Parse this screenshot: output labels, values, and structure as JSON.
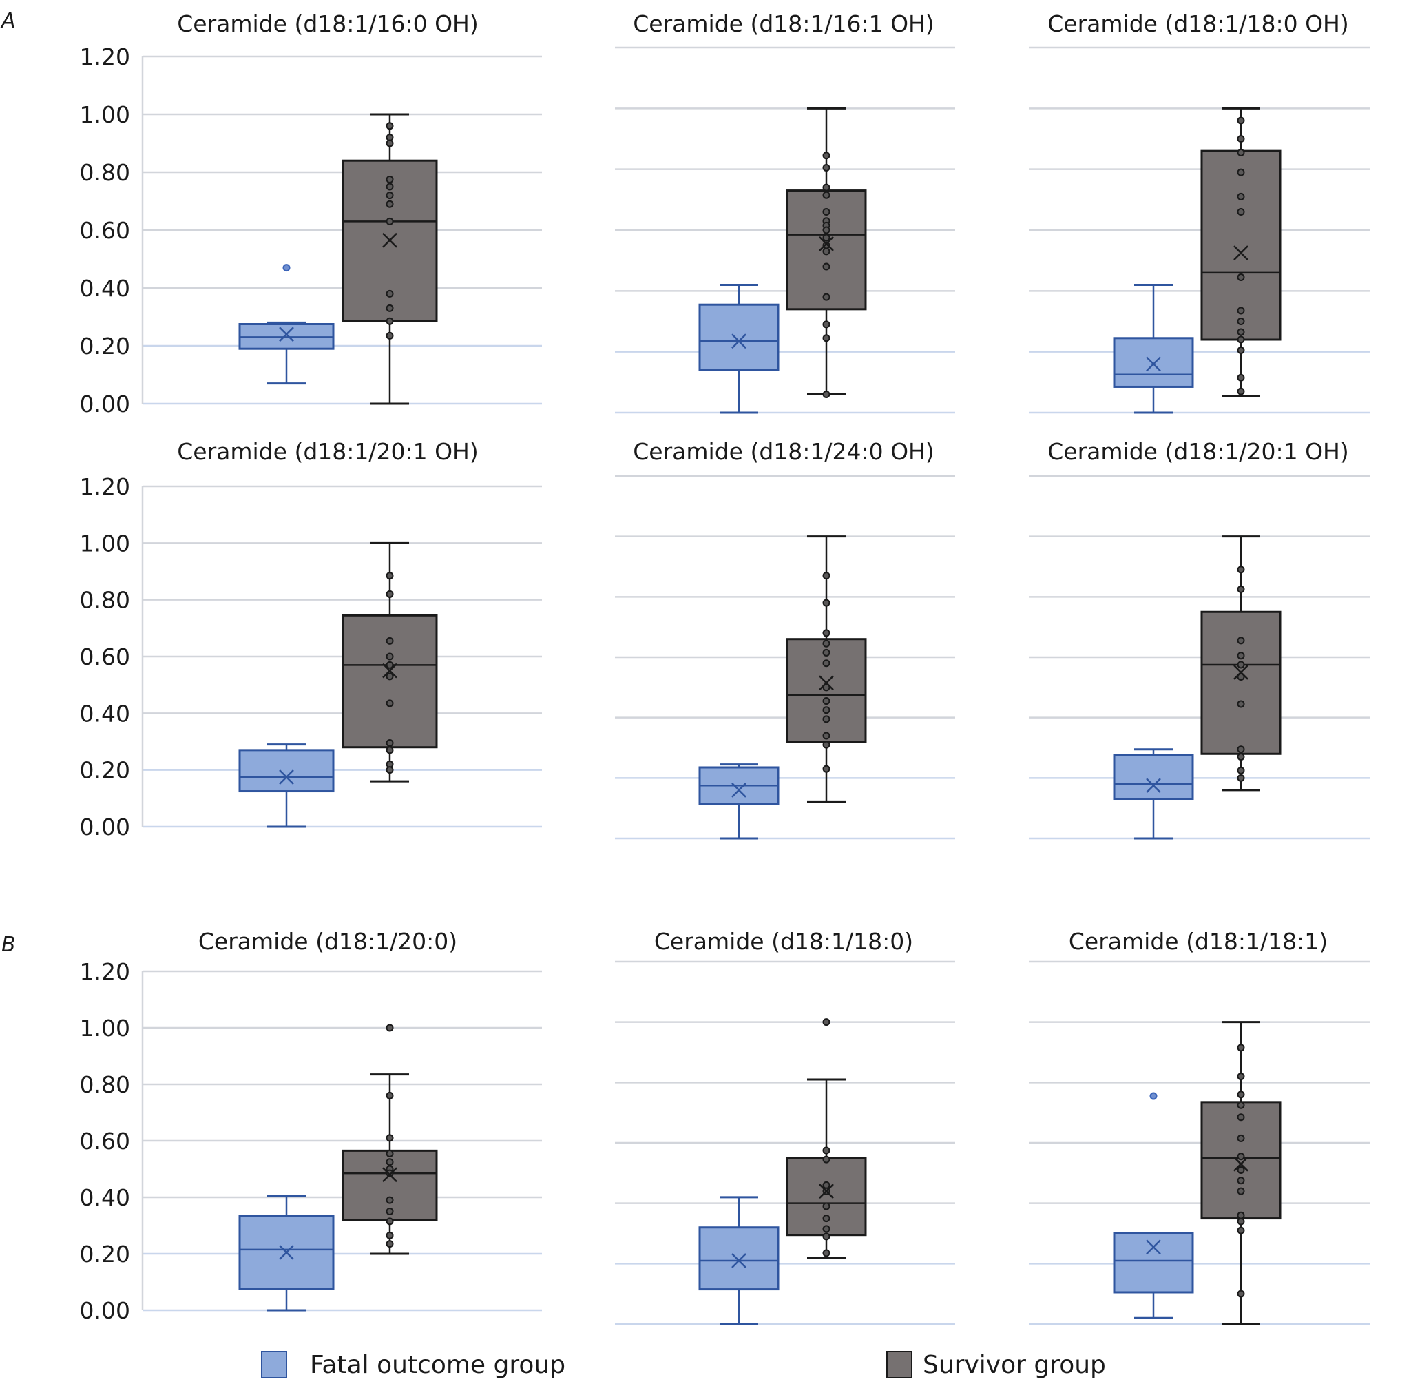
{
  "figure": {
    "panel_letters": [
      "A",
      "B"
    ],
    "legend": [
      {
        "label": "Fatal outcome group",
        "fill": "#8eaadb",
        "stroke": "#2f559f"
      },
      {
        "label": "Survivor group",
        "fill": "#767171",
        "stroke": "#1a1a1a"
      }
    ]
  },
  "chart_data": [
    {
      "type": "box",
      "section": "A",
      "title": "Ceramide (d18:1/16:0 OH)",
      "xlabel": "",
      "ylabel": "",
      "ylim": [
        0,
        1.2
      ],
      "yticks": [
        "0.00",
        "0.20",
        "0.40",
        "0.60",
        "0.80",
        "1.00",
        "1.20"
      ],
      "show_yticks": true,
      "grid": true,
      "series": [
        {
          "name": "Fatal outcome group",
          "min": 0.07,
          "q1": 0.19,
          "median": 0.23,
          "q3": 0.275,
          "max": 0.28,
          "mean": 0.24,
          "outliers": [
            0.47
          ],
          "points": []
        },
        {
          "name": "Survivor group",
          "min": 0.0,
          "q1": 0.285,
          "median": 0.63,
          "q3": 0.84,
          "max": 1.0,
          "mean": 0.565,
          "outliers": [],
          "points": [
            0.96,
            0.92,
            0.9,
            0.775,
            0.75,
            0.72,
            0.69,
            0.63,
            0.38,
            0.33,
            0.285,
            0.235
          ]
        }
      ]
    },
    {
      "type": "box",
      "section": "A",
      "title": "Ceramide (d18:1/16:1 OH)",
      "xlabel": "",
      "ylabel": "",
      "ylim": [
        0,
        1.2
      ],
      "yticks": [
        "0.00",
        "0.20",
        "0.40",
        "0.60",
        "0.80",
        "1.00",
        "1.20"
      ],
      "show_yticks": false,
      "grid": true,
      "series": [
        {
          "name": "Fatal outcome group",
          "min": 0.0,
          "q1": 0.14,
          "median": 0.235,
          "q3": 0.355,
          "max": 0.42,
          "mean": 0.235,
          "outliers": [],
          "points": []
        },
        {
          "name": "Survivor group",
          "min": 0.06,
          "q1": 0.34,
          "median": 0.585,
          "q3": 0.73,
          "max": 1.0,
          "mean": 0.555,
          "outliers": [],
          "points": [
            0.845,
            0.805,
            0.74,
            0.715,
            0.66,
            0.63,
            0.615,
            0.6,
            0.575,
            0.55,
            0.53,
            0.48,
            0.38,
            0.29,
            0.245,
            0.06
          ]
        }
      ]
    },
    {
      "type": "box",
      "section": "A",
      "title": "Ceramide (d18:1/18:0 OH)",
      "xlabel": "",
      "ylabel": "",
      "ylim": [
        0,
        1.2
      ],
      "yticks": [
        "0.00",
        "0.20",
        "0.40",
        "0.60",
        "0.80",
        "1.00",
        "1.20"
      ],
      "show_yticks": false,
      "grid": true,
      "series": [
        {
          "name": "Fatal outcome group",
          "min": 0.0,
          "q1": 0.085,
          "median": 0.125,
          "q3": 0.245,
          "max": 0.42,
          "mean": 0.16,
          "outliers": [],
          "points": []
        },
        {
          "name": "Survivor group",
          "min": 0.055,
          "q1": 0.24,
          "median": 0.46,
          "q3": 0.86,
          "max": 1.0,
          "mean": 0.525,
          "outliers": [],
          "points": [
            0.96,
            0.9,
            0.855,
            0.79,
            0.71,
            0.66,
            0.445,
            0.335,
            0.3,
            0.265,
            0.24,
            0.205,
            0.115,
            0.07
          ]
        }
      ]
    },
    {
      "type": "box",
      "section": "A",
      "title": "Ceramide (d18:1/20:1 OH)",
      "xlabel": "",
      "ylabel": "",
      "ylim": [
        0,
        1.2
      ],
      "yticks": [
        "0.00",
        "0.20",
        "0.40",
        "0.60",
        "0.80",
        "1.00",
        "1.20"
      ],
      "show_yticks": true,
      "grid": true,
      "series": [
        {
          "name": "Fatal outcome group",
          "min": 0.0,
          "q1": 0.125,
          "median": 0.175,
          "q3": 0.27,
          "max": 0.29,
          "mean": 0.175,
          "outliers": [],
          "points": []
        },
        {
          "name": "Survivor group",
          "min": 0.16,
          "q1": 0.28,
          "median": 0.57,
          "q3": 0.745,
          "max": 1.0,
          "mean": 0.55,
          "outliers": [],
          "points": [
            0.885,
            0.82,
            0.655,
            0.6,
            0.57,
            0.53,
            0.435,
            0.295,
            0.27,
            0.22,
            0.2
          ]
        }
      ]
    },
    {
      "type": "box",
      "section": "A",
      "title": "Ceramide (d18:1/24:0 OH)",
      "xlabel": "",
      "ylabel": "",
      "ylim": [
        0,
        1.2
      ],
      "yticks": [
        "0.00",
        "0.20",
        "0.40",
        "0.60",
        "0.80",
        "1.00",
        "1.20"
      ],
      "show_yticks": false,
      "grid": true,
      "series": [
        {
          "name": "Fatal outcome group",
          "min": 0.0,
          "q1": 0.115,
          "median": 0.175,
          "q3": 0.235,
          "max": 0.245,
          "mean": 0.16,
          "outliers": [],
          "points": []
        },
        {
          "name": "Survivor group",
          "min": 0.12,
          "q1": 0.32,
          "median": 0.475,
          "q3": 0.66,
          "max": 1.0,
          "mean": 0.515,
          "outliers": [],
          "points": [
            0.87,
            0.78,
            0.68,
            0.645,
            0.615,
            0.58,
            0.5,
            0.455,
            0.425,
            0.395,
            0.34,
            0.31,
            0.23
          ]
        }
      ]
    },
    {
      "type": "box",
      "section": "A",
      "title": "Ceramide (d18:1/20:1 OH)",
      "xlabel": "",
      "ylabel": "",
      "ylim": [
        0,
        1.2
      ],
      "yticks": [
        "0.00",
        "0.20",
        "0.40",
        "0.60",
        "0.80",
        "1.00",
        "1.20"
      ],
      "show_yticks": false,
      "grid": true,
      "series": [
        {
          "name": "Fatal outcome group",
          "min": 0.0,
          "q1": 0.13,
          "median": 0.18,
          "q3": 0.275,
          "max": 0.295,
          "mean": 0.175,
          "outliers": [],
          "points": []
        },
        {
          "name": "Survivor group",
          "min": 0.16,
          "q1": 0.28,
          "median": 0.575,
          "q3": 0.75,
          "max": 1.0,
          "mean": 0.55,
          "outliers": [],
          "points": [
            0.89,
            0.825,
            0.655,
            0.605,
            0.575,
            0.535,
            0.445,
            0.295,
            0.27,
            0.225,
            0.2
          ]
        }
      ]
    },
    {
      "type": "box",
      "section": "B",
      "title": "Ceramide (d18:1/20:0)",
      "xlabel": "",
      "ylabel": "",
      "ylim": [
        0,
        1.2
      ],
      "yticks": [
        "0.00",
        "0.20",
        "0.40",
        "0.60",
        "0.80",
        "1.00",
        "1.20"
      ],
      "show_yticks": true,
      "grid": true,
      "series": [
        {
          "name": "Fatal outcome group",
          "min": 0.0,
          "q1": 0.075,
          "median": 0.215,
          "q3": 0.335,
          "max": 0.405,
          "mean": 0.205,
          "outliers": [],
          "points": []
        },
        {
          "name": "Survivor group",
          "min": 0.2,
          "q1": 0.32,
          "median": 0.485,
          "q3": 0.565,
          "max": 0.835,
          "mean": 0.48,
          "outliers": [
            1.0
          ],
          "points": [
            0.76,
            0.61,
            0.555,
            0.525,
            0.5,
            0.485,
            0.39,
            0.35,
            0.315,
            0.265,
            0.235
          ]
        }
      ]
    },
    {
      "type": "box",
      "section": "B",
      "title": "Ceramide (d18:1/18:0)",
      "xlabel": "",
      "ylabel": "",
      "ylim": [
        0,
        1.2
      ],
      "yticks": [
        "0.00",
        "0.20",
        "0.40",
        "0.60",
        "0.80",
        "1.00",
        "1.20"
      ],
      "show_yticks": false,
      "grid": true,
      "series": [
        {
          "name": "Fatal outcome group",
          "min": 0.0,
          "q1": 0.115,
          "median": 0.21,
          "q3": 0.32,
          "max": 0.42,
          "mean": 0.21,
          "outliers": [],
          "points": []
        },
        {
          "name": "Survivor group",
          "min": 0.22,
          "q1": 0.295,
          "median": 0.4,
          "q3": 0.55,
          "max": 0.81,
          "mean": 0.44,
          "outliers": [
            1.0
          ],
          "points": [
            0.575,
            0.545,
            0.46,
            0.44,
            0.39,
            0.35,
            0.315,
            0.29,
            0.235
          ]
        }
      ]
    },
    {
      "type": "box",
      "section": "B",
      "title": "Ceramide (d18:1/18:1)",
      "xlabel": "",
      "ylabel": "",
      "ylim": [
        0,
        1.2
      ],
      "yticks": [
        "0.00",
        "0.20",
        "0.40",
        "0.60",
        "0.80",
        "1.00",
        "1.20"
      ],
      "show_yticks": false,
      "grid": true,
      "series": [
        {
          "name": "Fatal outcome group",
          "min": 0.02,
          "q1": 0.105,
          "median": 0.21,
          "q3": 0.3,
          "max": 0.3,
          "mean": 0.255,
          "outliers": [
            0.755
          ],
          "points": []
        },
        {
          "name": "Survivor group",
          "min": 0.0,
          "q1": 0.35,
          "median": 0.55,
          "q3": 0.735,
          "max": 1.0,
          "mean": 0.53,
          "outliers": [],
          "points": [
            0.915,
            0.82,
            0.76,
            0.725,
            0.685,
            0.615,
            0.555,
            0.51,
            0.475,
            0.44,
            0.36,
            0.34,
            0.31,
            0.1
          ]
        }
      ]
    }
  ]
}
